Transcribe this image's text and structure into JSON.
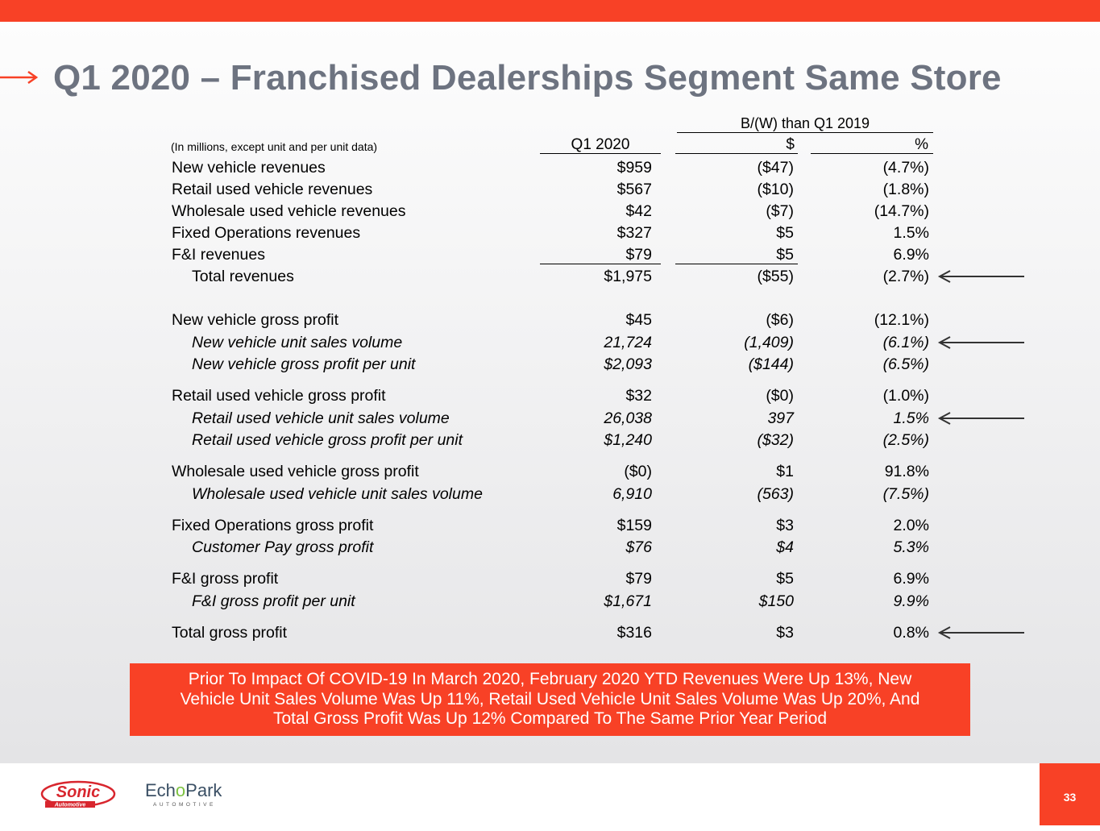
{
  "title": "Q1 2020 – Franchised Dealerships Segment Same Store",
  "table": {
    "comparison_header": "B/(W) than Q1 2019",
    "note": "(In millions, except unit and per unit data)",
    "columns": [
      "Q1 2020",
      "$",
      "%"
    ],
    "rows": [
      {
        "label": "New vehicle revenues",
        "q1": "$959",
        "delta": "($47)",
        "pct": "(4.7%)"
      },
      {
        "label": "Retail used vehicle revenues",
        "q1": "$567",
        "delta": "($10)",
        "pct": "(1.8%)"
      },
      {
        "label": "Wholesale used vehicle revenues",
        "q1": "$42",
        "delta": "($7)",
        "pct": "(14.7%)"
      },
      {
        "label": "Fixed Operations revenues",
        "q1": "$327",
        "delta": "$5",
        "pct": "1.5%"
      },
      {
        "label": "F&I revenues",
        "q1": "$79",
        "delta": "$5",
        "pct": "6.9%"
      },
      {
        "label": "Total revenues",
        "q1": "$1,975",
        "delta": "($55)",
        "pct": "(2.7%)"
      },
      {
        "label": "New vehicle gross profit",
        "q1": "$45",
        "delta": "($6)",
        "pct": "(12.1%)"
      },
      {
        "label": "New vehicle unit sales volume",
        "q1": "21,724",
        "delta": "(1,409)",
        "pct": "(6.1%)"
      },
      {
        "label": "New vehicle gross profit per unit",
        "q1": "$2,093",
        "delta": "($144)",
        "pct": "(6.5%)"
      },
      {
        "label": "Retail used vehicle gross profit",
        "q1": "$32",
        "delta": "($0)",
        "pct": "(1.0%)"
      },
      {
        "label": "Retail used vehicle unit sales volume",
        "q1": "26,038",
        "delta": "397",
        "pct": "1.5%"
      },
      {
        "label": "Retail used vehicle gross profit per unit",
        "q1": "$1,240",
        "delta": "($32)",
        "pct": "(2.5%)"
      },
      {
        "label": "Wholesale used vehicle gross profit",
        "q1": "($0)",
        "delta": "$1",
        "pct": "91.8%"
      },
      {
        "label": "Wholesale used vehicle unit sales volume",
        "q1": "6,910",
        "delta": "(563)",
        "pct": "(7.5%)"
      },
      {
        "label": "Fixed Operations gross profit",
        "q1": "$159",
        "delta": "$3",
        "pct": "2.0%"
      },
      {
        "label": "Customer Pay gross profit",
        "q1": "$76",
        "delta": "$4",
        "pct": "5.3%"
      },
      {
        "label": "F&I gross profit",
        "q1": "$79",
        "delta": "$5",
        "pct": "6.9%"
      },
      {
        "label": "F&I gross profit per unit",
        "q1": "$1,671",
        "delta": "$150",
        "pct": "9.9%"
      },
      {
        "label": "Total gross profit",
        "q1": "$316",
        "delta": "$3",
        "pct": "0.8%"
      }
    ]
  },
  "callout": {
    "line1": "Prior To Impact Of COVID-19 In March 2020, February 2020 YTD Revenues Were Up 13%, New",
    "line2": "Vehicle Unit Sales Volume Was Up 11%, Retail Used Vehicle Unit Sales Volume Was Up 20%, And",
    "line3": "Total Gross Profit Was Up 12% Compared To The Same Prior Year Period"
  },
  "footer": {
    "sonic_logo_text": "Sonic",
    "sonic_logo_sub": "Automotive",
    "echopark_pre": "Ech",
    "echopark_o": "o",
    "echopark_post": "Park",
    "echopark_sub": "AUTOMOTIVE",
    "page_number": "33"
  },
  "colors": {
    "brand_red": "#f84126",
    "title_gray": "#6d7380",
    "echopark_green": "#7dc242",
    "echopark_navy": "#3a4f64"
  }
}
